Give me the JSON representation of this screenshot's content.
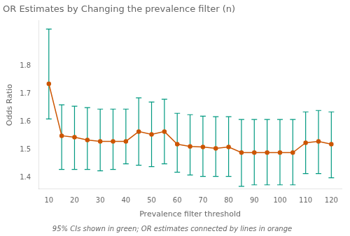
{
  "chart_data": {
    "type": "line",
    "title": "OR Estimates by Changing the prevalence filter (n)",
    "xlabel": "Prevalence filter threshold",
    "ylabel": "Odds Ratio",
    "caption": "95% CIs shown in green; OR estimates connected by lines in orange",
    "x": [
      10,
      15,
      20,
      25,
      30,
      35,
      40,
      45,
      50,
      55,
      60,
      65,
      70,
      75,
      80,
      85,
      90,
      95,
      100,
      105,
      110,
      115,
      120
    ],
    "values": [
      1.735,
      1.55,
      1.545,
      1.535,
      1.53,
      1.53,
      1.53,
      1.565,
      1.555,
      1.565,
      1.52,
      1.512,
      1.51,
      1.505,
      1.51,
      1.49,
      1.49,
      1.49,
      1.49,
      1.49,
      1.525,
      1.53,
      1.52
    ],
    "ci_lower": [
      1.61,
      1.43,
      1.43,
      1.43,
      1.425,
      1.43,
      1.45,
      1.445,
      1.44,
      1.45,
      1.42,
      1.41,
      1.405,
      1.405,
      1.405,
      1.37,
      1.375,
      1.375,
      1.375,
      1.375,
      1.415,
      1.415,
      1.4
    ],
    "ci_upper": [
      1.93,
      1.66,
      1.655,
      1.65,
      1.645,
      1.645,
      1.645,
      1.685,
      1.67,
      1.68,
      1.63,
      1.625,
      1.62,
      1.618,
      1.618,
      1.608,
      1.608,
      1.608,
      1.608,
      1.608,
      1.635,
      1.64,
      1.635
    ],
    "color": "#CC5500",
    "ci_color": "#009980",
    "marker": "circle",
    "xlim": [
      6,
      124
    ],
    "xticks": [
      10,
      20,
      30,
      40,
      50,
      60,
      70,
      80,
      90,
      100,
      110,
      120
    ],
    "ylim": [
      1.36,
      1.96
    ],
    "yticks": [
      1.4,
      1.5,
      1.6,
      1.7,
      1.8
    ],
    "grid": false
  }
}
